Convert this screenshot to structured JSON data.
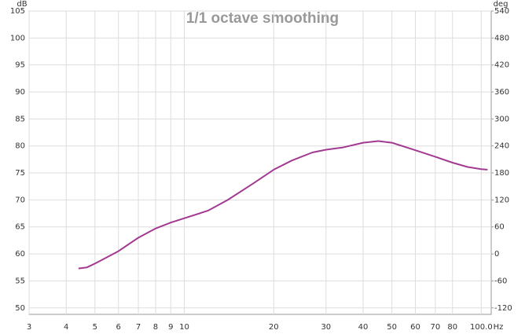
{
  "chart_data": {
    "type": "line",
    "title": "1/1 octave smoothing",
    "y_label": "dB",
    "y2_label": "deg",
    "x_label": "Hz",
    "log_x": true,
    "grid": true,
    "xlim": [
      3,
      108
    ],
    "ylim": [
      48.8,
      105
    ],
    "y2lim": [
      -134.4,
      540
    ],
    "xticks": [
      3,
      4,
      5,
      6,
      7,
      8,
      9,
      10,
      20,
      30,
      40,
      50,
      60,
      70,
      80,
      {
        "value": 100,
        "label": "100.0"
      }
    ],
    "yticks": [
      50,
      55,
      60,
      65,
      70,
      75,
      80,
      85,
      90,
      95,
      100,
      105
    ],
    "y2ticks": [
      -120,
      -60,
      0,
      60,
      120,
      180,
      240,
      300,
      360,
      420,
      480,
      540
    ],
    "x": [
      4.4,
      4.7,
      5,
      6,
      7,
      8,
      9,
      10,
      12,
      14,
      17,
      20,
      23,
      27,
      30,
      34,
      40,
      45,
      50,
      60,
      70,
      80,
      90,
      100,
      105
    ],
    "series": [
      {
        "color": "#a23a91",
        "values": [
          57.3,
          57.5,
          58.2,
          60.5,
          63,
          64.7,
          65.8,
          66.6,
          68,
          70,
          73,
          75.6,
          77.3,
          78.8,
          79.3,
          79.7,
          80.6,
          80.9,
          80.6,
          79.2,
          78,
          76.9,
          76.1,
          75.7,
          75.6
        ]
      }
    ]
  }
}
